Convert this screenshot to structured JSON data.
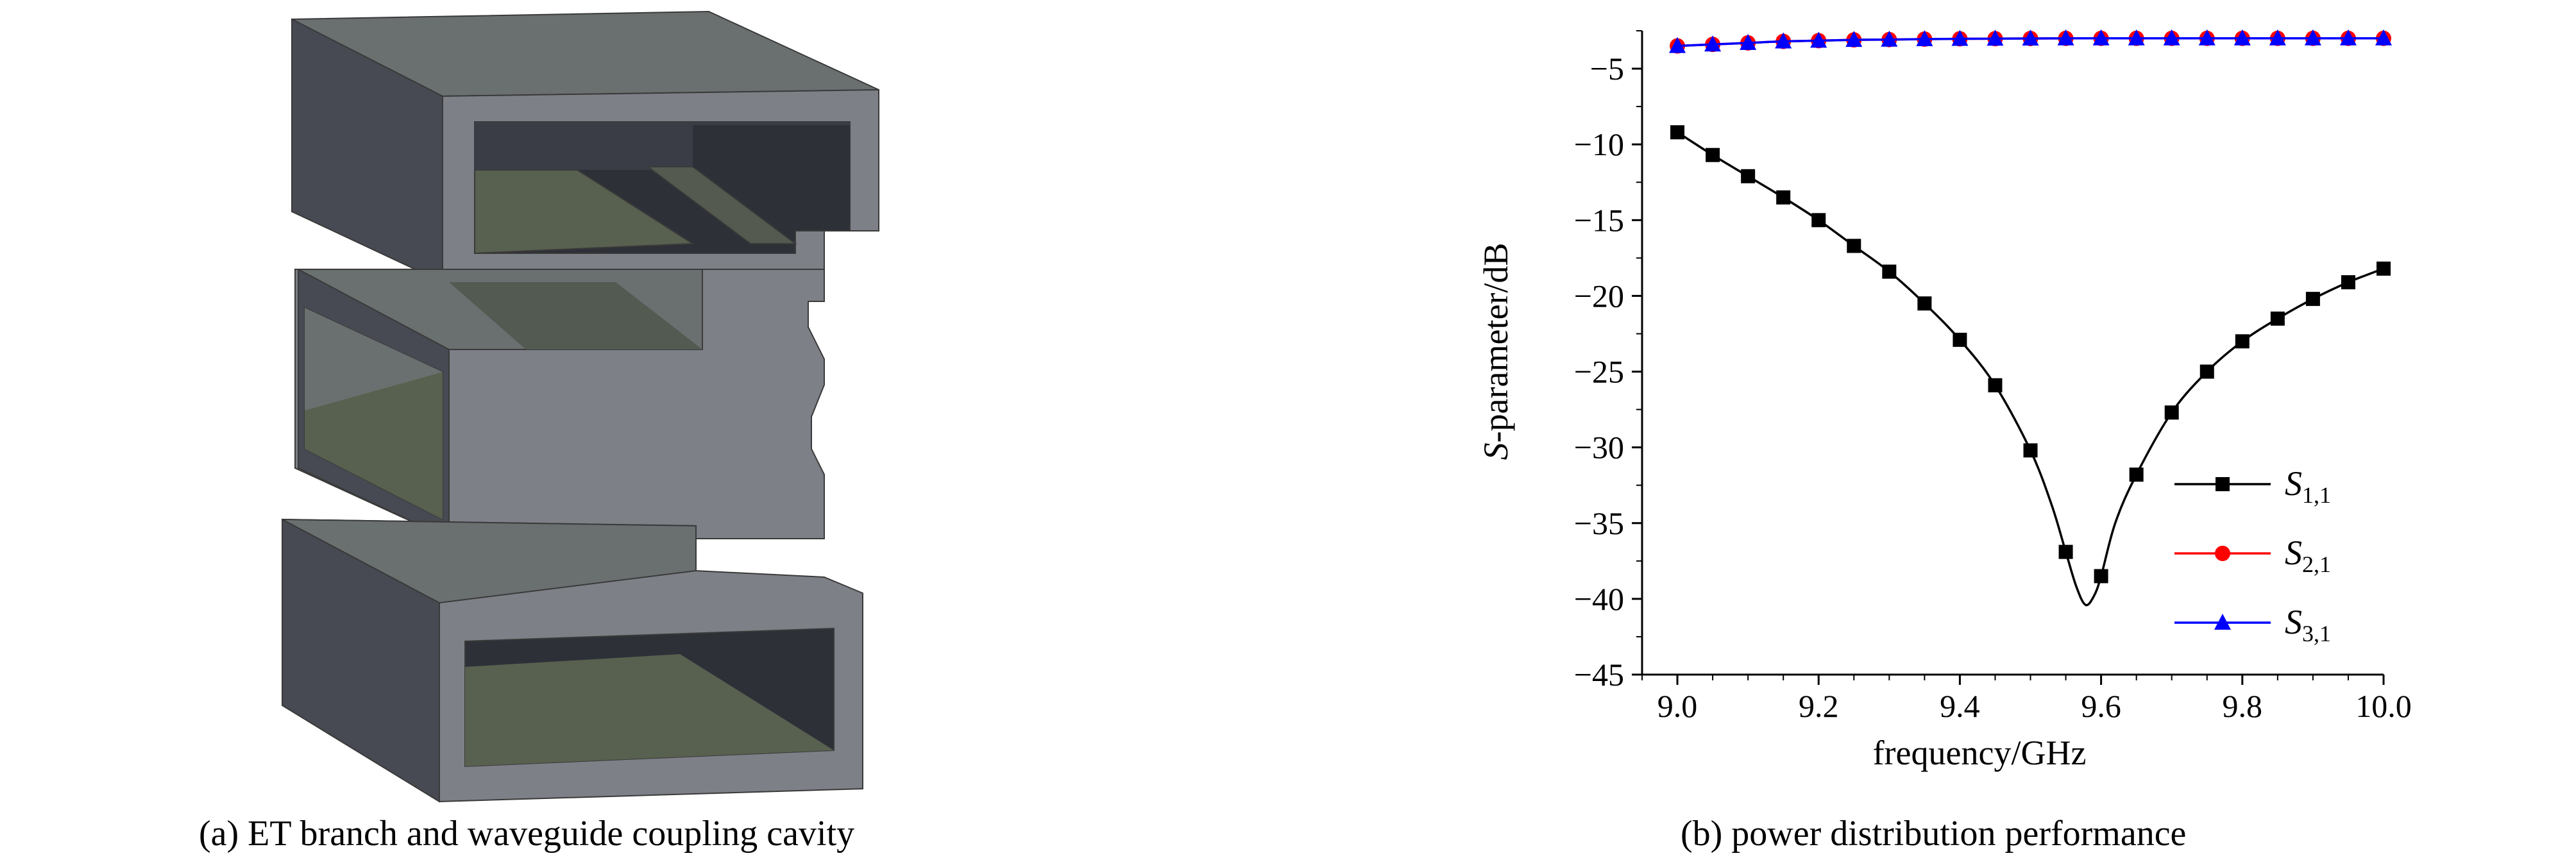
{
  "panel_a": {
    "caption": "(a) ET branch and waveguide coupling cavity"
  },
  "panel_b": {
    "caption": "(b) power distribution performance"
  },
  "chart_data": {
    "type": "line",
    "xlabel": "frequency/GHz",
    "ylabel_italic": "S",
    "ylabel_rest": "-parameter/dB",
    "xlim": [
      8.95,
      10.0
    ],
    "ylim": [
      -45,
      -2.5
    ],
    "xticks": [
      9.0,
      9.2,
      9.4,
      9.6,
      9.8,
      10.0
    ],
    "xtick_labels": [
      "9.0",
      "9.2",
      "9.4",
      "9.6",
      "9.8",
      "10.0"
    ],
    "yticks": [
      -5,
      -10,
      -15,
      -20,
      -25,
      -30,
      -35,
      -40,
      -45
    ],
    "ytick_labels": [
      "−5",
      "−10",
      "−15",
      "−20",
      "−25",
      "−30",
      "−35",
      "−40",
      "−45"
    ],
    "grid": false,
    "legend_position": "bottom-right",
    "series": [
      {
        "name_main": "S",
        "name_sub": "1,1",
        "color": "#000000",
        "marker": "square",
        "x": [
          9.0,
          9.05,
          9.1,
          9.15,
          9.2,
          9.25,
          9.3,
          9.35,
          9.4,
          9.45,
          9.5,
          9.55,
          9.6,
          9.65,
          9.7,
          9.75,
          9.8,
          9.85,
          9.9,
          9.95,
          10.0
        ],
        "y": [
          -9.2,
          -10.7,
          -12.1,
          -13.5,
          -15.0,
          -16.7,
          -18.4,
          -20.5,
          -22.9,
          -25.9,
          -30.2,
          -36.9,
          -38.5,
          -31.8,
          -27.7,
          -25.0,
          -23.0,
          -21.5,
          -20.2,
          -19.1,
          -18.2
        ],
        "curve_x": [
          9.0,
          9.05,
          9.1,
          9.15,
          9.2,
          9.25,
          9.3,
          9.35,
          9.4,
          9.45,
          9.5,
          9.53,
          9.55,
          9.565,
          9.578,
          9.59,
          9.6,
          9.62,
          9.65,
          9.7,
          9.75,
          9.8,
          9.85,
          9.9,
          9.95,
          10.0
        ],
        "curve_y": [
          -9.2,
          -10.7,
          -12.1,
          -13.5,
          -15.0,
          -16.7,
          -18.4,
          -20.5,
          -22.9,
          -25.9,
          -30.2,
          -33.8,
          -36.9,
          -39.2,
          -40.4,
          -39.8,
          -38.5,
          -35.0,
          -31.8,
          -27.7,
          -25.0,
          -23.0,
          -21.5,
          -20.2,
          -19.1,
          -18.2
        ]
      },
      {
        "name_main": "S",
        "name_sub": "2,1",
        "color": "#ff0000",
        "marker": "circle",
        "x": [
          9.0,
          9.05,
          9.1,
          9.15,
          9.2,
          9.25,
          9.3,
          9.35,
          9.4,
          9.45,
          9.5,
          9.55,
          9.6,
          9.65,
          9.7,
          9.75,
          9.8,
          9.85,
          9.9,
          9.95,
          10.0
        ],
        "y": [
          -3.5,
          -3.4,
          -3.3,
          -3.2,
          -3.15,
          -3.1,
          -3.08,
          -3.05,
          -3.03,
          -3.02,
          -3.01,
          -3.0,
          -3.0,
          -3.0,
          -3.0,
          -3.0,
          -3.0,
          -3.0,
          -3.0,
          -3.0,
          -3.0
        ]
      },
      {
        "name_main": "S",
        "name_sub": "3,1",
        "color": "#0000ff",
        "marker": "triangle",
        "x": [
          9.0,
          9.05,
          9.1,
          9.15,
          9.2,
          9.25,
          9.3,
          9.35,
          9.4,
          9.45,
          9.5,
          9.55,
          9.6,
          9.65,
          9.7,
          9.75,
          9.8,
          9.85,
          9.9,
          9.95,
          10.0
        ],
        "y": [
          -3.5,
          -3.4,
          -3.3,
          -3.2,
          -3.15,
          -3.1,
          -3.08,
          -3.05,
          -3.03,
          -3.02,
          -3.01,
          -3.0,
          -3.0,
          -3.0,
          -3.0,
          -3.0,
          -3.0,
          -3.0,
          -3.0,
          -3.0,
          -3.0
        ]
      }
    ]
  }
}
